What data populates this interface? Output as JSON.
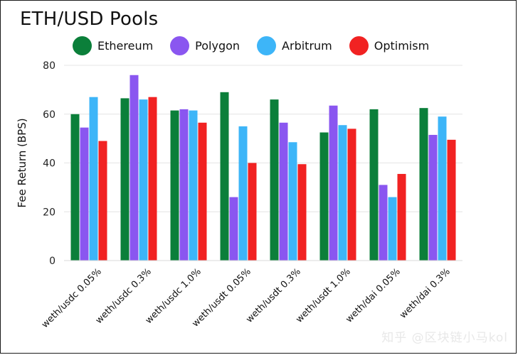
{
  "chart_data": {
    "type": "bar",
    "title": "ETH/USD Pools",
    "ylabel": "Fee Return (BPS)",
    "xlabel": "",
    "ylim": [
      0,
      80
    ],
    "yticks": [
      0,
      20,
      40,
      60,
      80
    ],
    "grid": true,
    "legend_position": "top",
    "categories": [
      "weth/usdc 0.05%",
      "weth/usdc 0.3%",
      "weth/usdc 1.0%",
      "weth/usdt 0.05%",
      "weth/usdt 0.3%",
      "weth/usdt 1.0%",
      "weth/dai 0.05%",
      "weth/dai 0.3%"
    ],
    "series": [
      {
        "name": "Ethereum",
        "color": "#0b7f3a",
        "values": [
          60,
          66.5,
          61.5,
          69,
          66,
          52.5,
          62,
          62.5
        ]
      },
      {
        "name": "Polygon",
        "color": "#8a56f0",
        "values": [
          54.5,
          76,
          62,
          26,
          56.5,
          63.5,
          31,
          51.5
        ]
      },
      {
        "name": "Arbitrum",
        "color": "#3db5f8",
        "values": [
          67,
          66,
          61.5,
          55,
          48.5,
          55.5,
          26,
          59
        ]
      },
      {
        "name": "Optimism",
        "color": "#f12222",
        "values": [
          49,
          67,
          56.5,
          40,
          39.5,
          54,
          35.5,
          49.5
        ]
      }
    ]
  },
  "watermark": "知乎 @区块链小马kol"
}
